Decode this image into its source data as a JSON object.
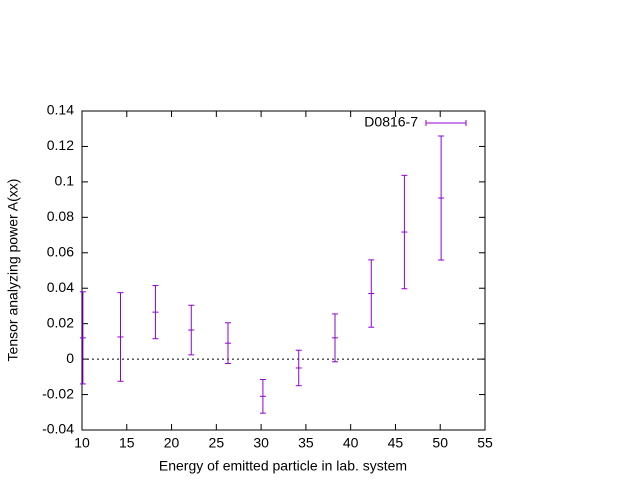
{
  "chart_data": {
    "type": "errorbar",
    "x_label": "Energy of emitted particle in lab. system",
    "y_label": "Tensor analyzing power A(xx)",
    "xlim": [
      10,
      55
    ],
    "xticks": [
      10,
      15,
      20,
      25,
      30,
      35,
      40,
      45,
      50,
      55
    ],
    "ylim": [
      -0.04,
      0.14
    ],
    "yticks": [
      -0.04,
      -0.02,
      0,
      0.02,
      0.04,
      0.06,
      0.08,
      0.1,
      0.12,
      0.14
    ],
    "zero_axis": true,
    "legend": "top-right",
    "series": [
      {
        "name": "D0816-7",
        "color": "#9400d3",
        "x": [
          10.1,
          14.3,
          18.2,
          22.2,
          26.3,
          30.2,
          34.2,
          38.25,
          42.3,
          46.0,
          50.1
        ],
        "values": [
          0.012,
          0.0125,
          0.0265,
          0.0164,
          0.009,
          -0.021,
          -0.005,
          0.012,
          0.037,
          0.0717,
          0.0909
        ],
        "errors": [
          0.026,
          0.025,
          0.015,
          0.014,
          0.0115,
          0.0095,
          0.01,
          0.0135,
          0.019,
          0.032,
          0.035
        ]
      }
    ]
  }
}
